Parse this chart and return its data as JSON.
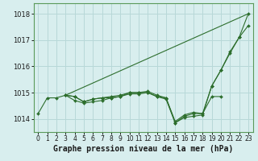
{
  "background_color": "#d8eeee",
  "grid_color": "#b8d8d8",
  "line_color": "#2d6e2d",
  "title": "Graphe pression niveau de la mer (hPa)",
  "xlim": [
    -0.5,
    23.5
  ],
  "ylim": [
    1013.5,
    1018.4
  ],
  "yticks": [
    1014,
    1015,
    1016,
    1017,
    1018
  ],
  "xticks": [
    0,
    1,
    2,
    3,
    4,
    5,
    6,
    7,
    8,
    9,
    10,
    11,
    12,
    13,
    14,
    15,
    16,
    17,
    18,
    19,
    20,
    21,
    22,
    23
  ],
  "series": [
    {
      "x": [
        0,
        1,
        2,
        3,
        4,
        5,
        6,
        7,
        8,
        9,
        10,
        11,
        12,
        13,
        14,
        15,
        16,
        17,
        18,
        19,
        20
      ],
      "y": [
        1014.2,
        1014.8,
        1014.8,
        1014.9,
        1014.85,
        1014.65,
        1014.75,
        1014.8,
        1014.8,
        1014.85,
        1015.0,
        1015.0,
        1015.0,
        1014.85,
        1014.8,
        1013.9,
        1014.15,
        1014.25,
        1014.2,
        1014.85,
        1014.85
      ],
      "has_marker": true,
      "markersize": 2.0
    },
    {
      "x": [
        3,
        4,
        5,
        6,
        7,
        8,
        9,
        10,
        11,
        12,
        13,
        14,
        15,
        16,
        17,
        18,
        19,
        20,
        21,
        22,
        23
      ],
      "y": [
        1014.9,
        1014.85,
        1014.65,
        1014.75,
        1014.8,
        1014.85,
        1014.9,
        1015.0,
        1015.0,
        1015.05,
        1014.9,
        1014.8,
        1013.85,
        1014.1,
        1014.2,
        1014.2,
        1015.25,
        1015.85,
        1016.5,
        1017.1,
        1017.55
      ],
      "has_marker": true,
      "markersize": 2.0
    },
    {
      "x": [
        3,
        4,
        5,
        6,
        7,
        8,
        9,
        10,
        11,
        12,
        13,
        14,
        15,
        16,
        17,
        18,
        19,
        20,
        21,
        22,
        23
      ],
      "y": [
        1014.9,
        1014.7,
        1014.6,
        1014.65,
        1014.7,
        1014.8,
        1014.85,
        1014.95,
        1014.95,
        1015.0,
        1014.85,
        1014.75,
        1013.85,
        1014.05,
        1014.1,
        1014.15,
        1015.25,
        1015.85,
        1016.55,
        1017.1,
        1018.0
      ],
      "has_marker": true,
      "markersize": 2.0
    },
    {
      "x": [
        3,
        23
      ],
      "y": [
        1014.9,
        1018.0
      ],
      "has_marker": false,
      "markersize": 0
    }
  ]
}
